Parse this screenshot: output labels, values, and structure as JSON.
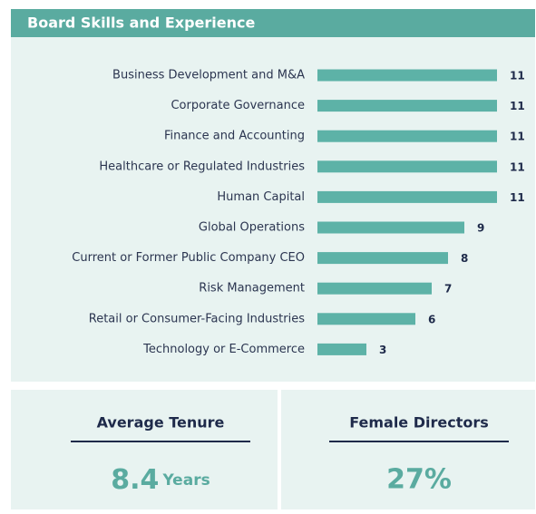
{
  "chart_data": {
    "type": "bar",
    "orientation": "horizontal",
    "title": "Board Skills and Experience",
    "categories": [
      "Business Development and M&A",
      "Corporate Governance",
      "Finance and Accounting",
      "Healthcare or Regulated Industries",
      "Human Capital",
      "Global Operations",
      "Current or Former Public Company CEO",
      "Risk Management",
      "Retail or Consumer-Facing Industries",
      "Technology or E-Commerce"
    ],
    "values": [
      11,
      11,
      11,
      11,
      11,
      9,
      8,
      7,
      6,
      3
    ],
    "color": "#5db2a7"
  },
  "stats": [
    {
      "label": "Average Tenure",
      "value": "8.4",
      "unit": "Years"
    },
    {
      "label": "Female Directors",
      "value": "27%"
    }
  ]
}
